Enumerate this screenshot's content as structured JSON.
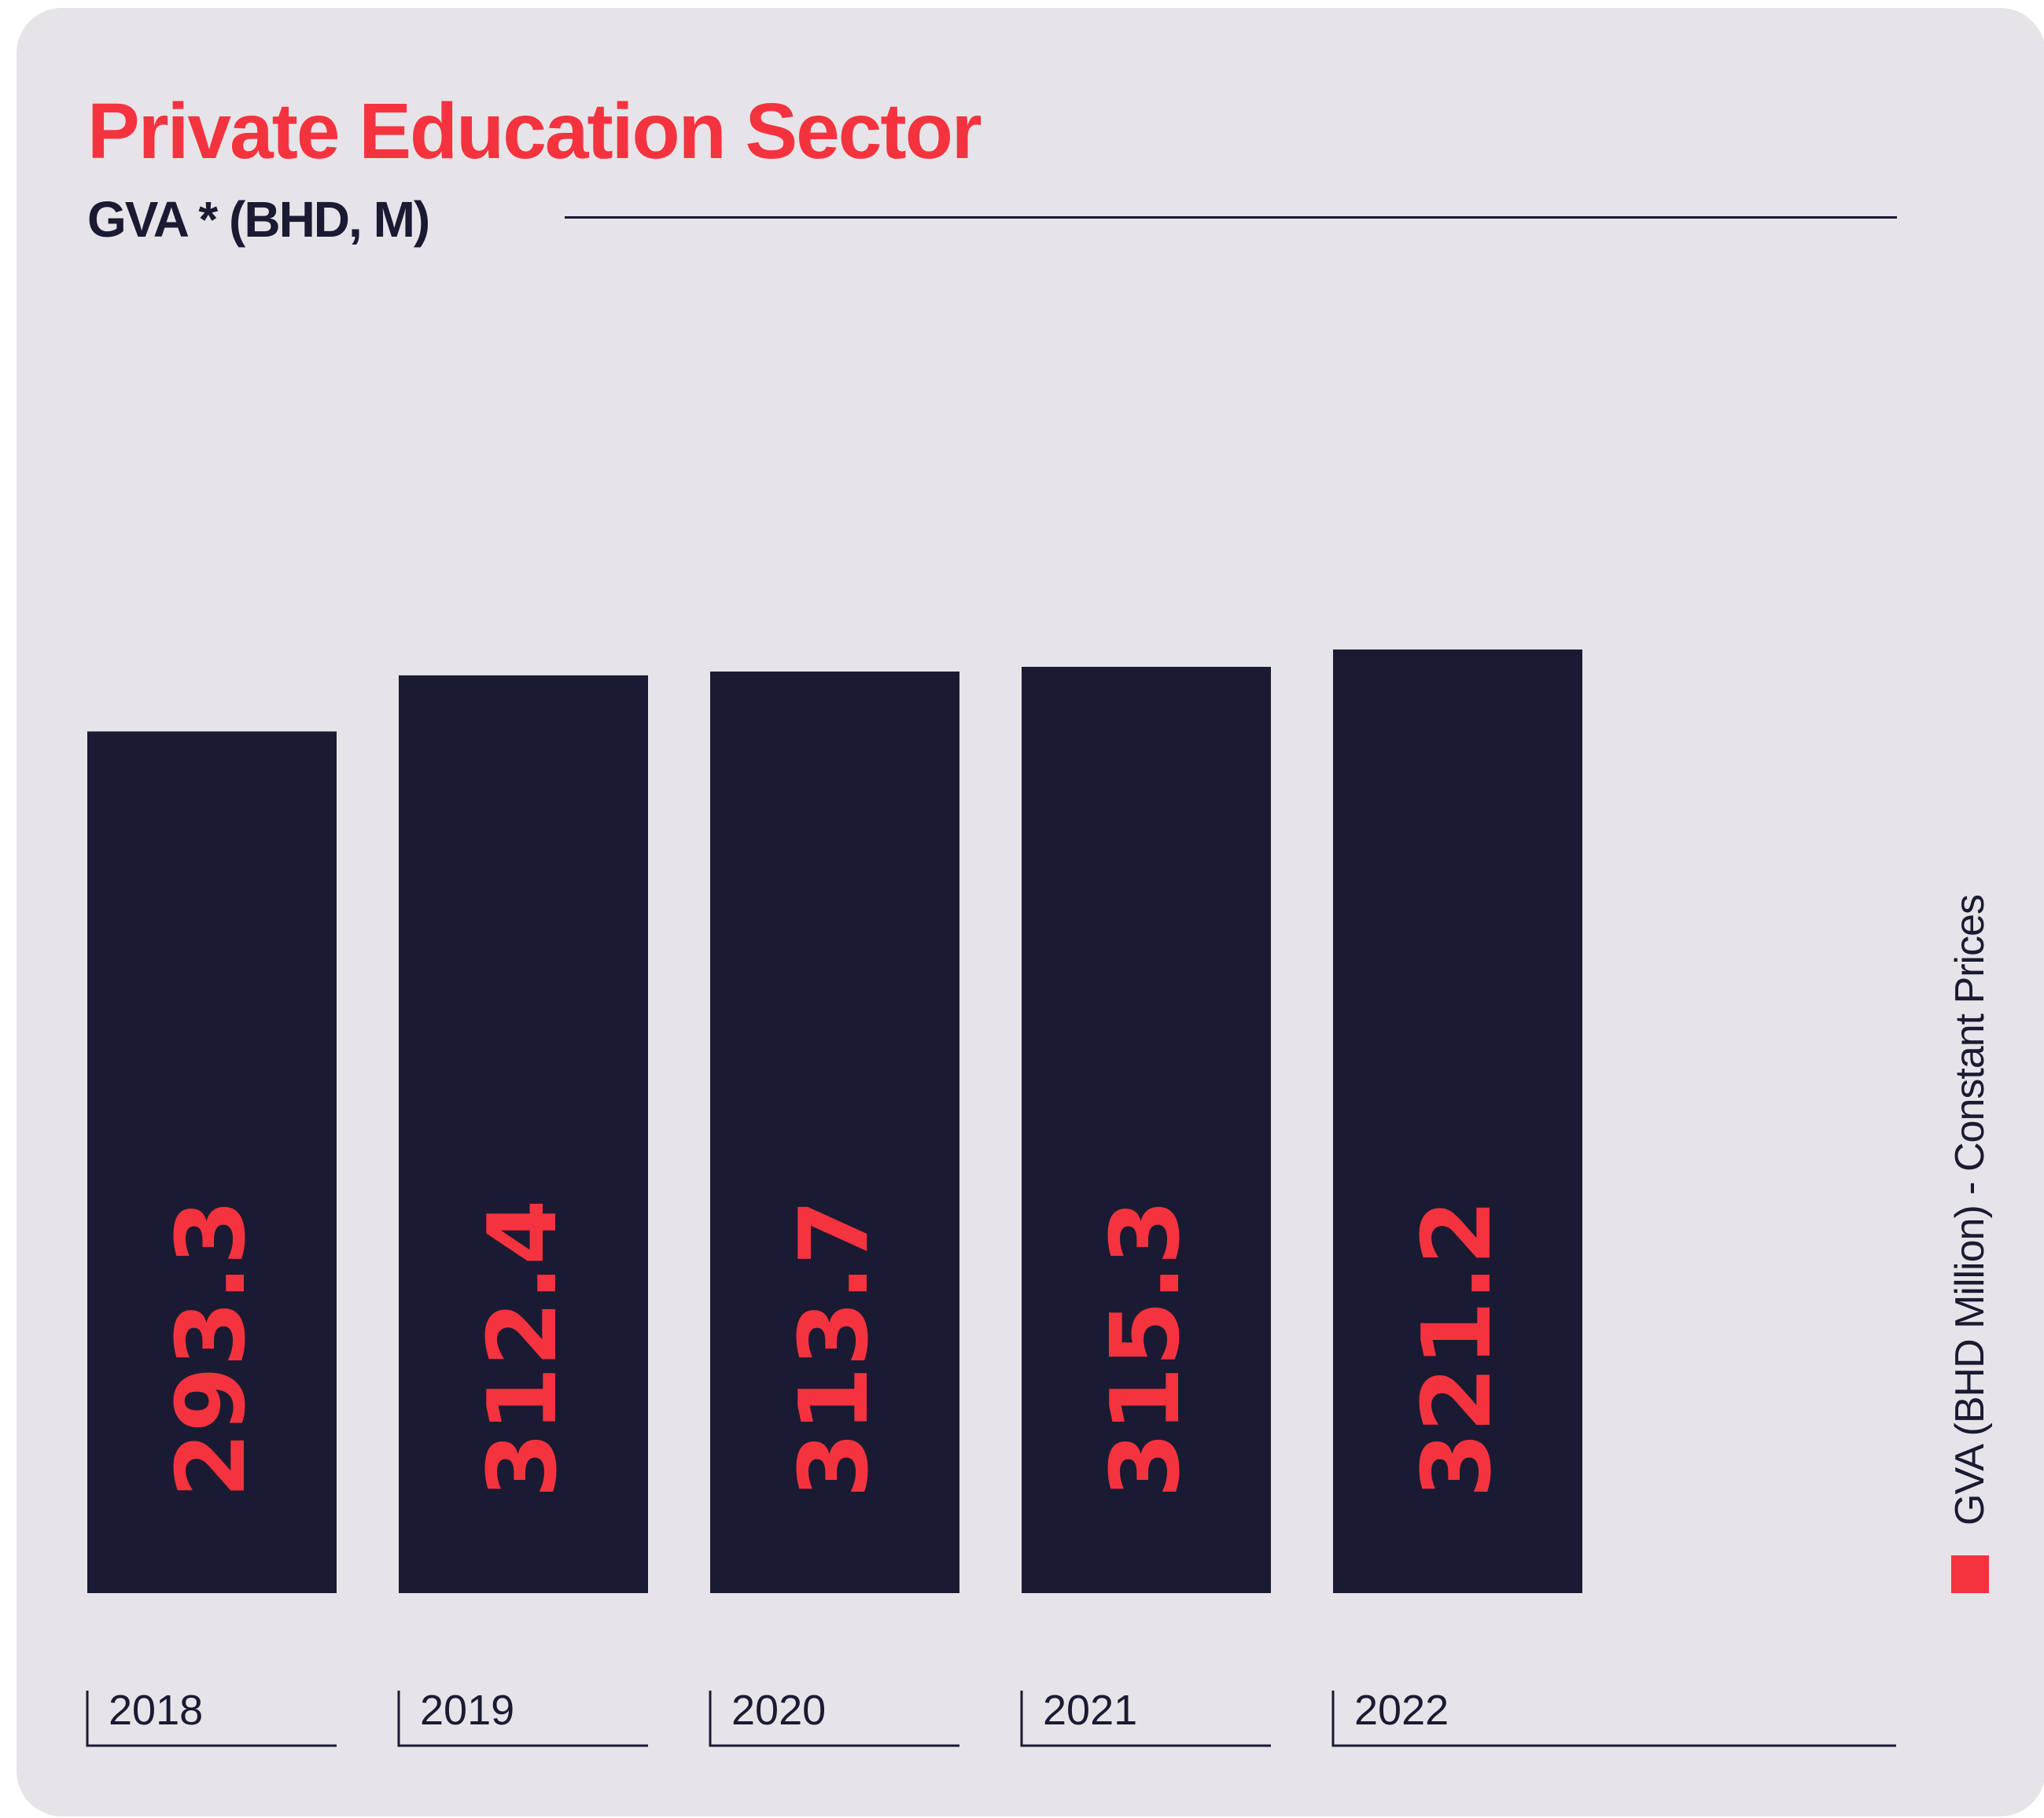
{
  "colors": {
    "background": "#e6e4e8",
    "bar": "#1b1a33",
    "accent": "#f5333f",
    "text": "#1b1a33"
  },
  "chart_data": {
    "type": "bar",
    "title": "Private Education Sector",
    "subtitle": "GVA * (BHD, M)",
    "categories": [
      "2018",
      "2019",
      "2020",
      "2021",
      "2022"
    ],
    "series": [
      {
        "name": "GVA (BHD Million) - Constant Prices",
        "values": [
          293.3,
          312.4,
          313.7,
          315.3,
          321.2
        ],
        "labels": [
          "293.3",
          "312.4",
          "313.7",
          "315.3",
          "321.2"
        ]
      }
    ],
    "legend_position": "right",
    "grid": false,
    "y_axis_visible": false
  }
}
